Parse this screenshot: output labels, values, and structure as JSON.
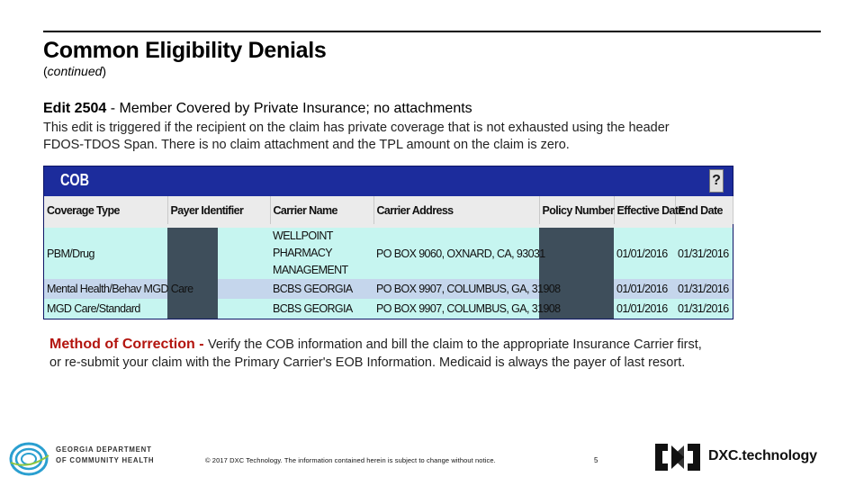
{
  "slide": {
    "title": "Common Eligibility Denials",
    "subtitle_open": "(",
    "subtitle": "continued",
    "subtitle_close": ")"
  },
  "edit": {
    "heading_bold": "Edit 2504",
    "heading_rest": " - Member Covered by Private Insurance; no attachments",
    "description": "This edit is triggered if the recipient on the claim has private coverage that is not exhausted using the header FDOS-TDOS Span. There is no claim attachment and the TPL amount on the claim is zero."
  },
  "cob": {
    "title": "COB",
    "help_label": "?",
    "columns": [
      "Coverage Type",
      "Payer Identifier",
      "Carrier Name",
      "Carrier Address",
      "Policy Number",
      "Effective Date",
      "End Date"
    ],
    "rows": [
      {
        "coverage_type": "PBM/Drug",
        "payer_identifier": "",
        "carrier_name": "WELLPOINT PHARMACY MANAGEMENT",
        "carrier_address": "PO BOX 9060, OXNARD, CA, 93031",
        "policy_number": "",
        "effective_date": "01/01/2016",
        "end_date": "01/31/2016"
      },
      {
        "coverage_type": "Mental Health/Behav MGD Care",
        "payer_identifier": "",
        "carrier_name": "BCBS GEORGIA",
        "carrier_address": "PO BOX 9907, COLUMBUS, GA, 31908",
        "policy_number": "",
        "effective_date": "01/01/2016",
        "end_date": "01/31/2016"
      },
      {
        "coverage_type": "MGD Care/Standard",
        "payer_identifier": "",
        "carrier_name": "BCBS GEORGIA",
        "carrier_address": "PO BOX 9907, COLUMBUS, GA, 31908",
        "policy_number": "",
        "effective_date": "01/01/2016",
        "end_date": "01/31/2016"
      }
    ],
    "colors": {
      "panel": "#1c2c9c",
      "header_row": "#ebebeb",
      "row_teal": "#c6f5f0",
      "row_blue": "#c5d6ec",
      "redaction": "#3e4e5b"
    }
  },
  "method": {
    "label": "Method of Correction - ",
    "text": "Verify the COB information and bill the claim to the appropriate Insurance Carrier first, or re-submit your claim with the Primary Carrier's EOB Information. Medicaid is always the payer of last resort.",
    "label_color": "#b3140e"
  },
  "footer": {
    "gdch_line1": "GEORGIA DEPARTMENT",
    "gdch_line2": "OF COMMUNITY HEALTH",
    "note": "© 2017 DXC Technology. The information contained herein is subject to change without notice.",
    "page": "5",
    "dxc_wordmark": "DXC.technology"
  }
}
